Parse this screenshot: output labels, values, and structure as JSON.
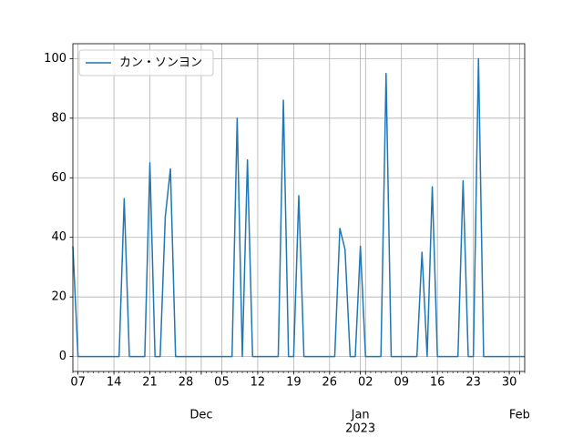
{
  "chart_data": {
    "type": "line",
    "x": [
      "2022-11-06",
      "2022-11-07",
      "2022-11-08",
      "2022-11-09",
      "2022-11-10",
      "2022-11-11",
      "2022-11-12",
      "2022-11-13",
      "2022-11-14",
      "2022-11-15",
      "2022-11-16",
      "2022-11-17",
      "2022-11-18",
      "2022-11-19",
      "2022-11-20",
      "2022-11-21",
      "2022-11-22",
      "2022-11-23",
      "2022-11-24",
      "2022-11-25",
      "2022-11-26",
      "2022-11-27",
      "2022-11-28",
      "2022-11-29",
      "2022-11-30",
      "2022-12-01",
      "2022-12-02",
      "2022-12-03",
      "2022-12-04",
      "2022-12-05",
      "2022-12-06",
      "2022-12-07",
      "2022-12-08",
      "2022-12-09",
      "2022-12-10",
      "2022-12-11",
      "2022-12-12",
      "2022-12-13",
      "2022-12-14",
      "2022-12-15",
      "2022-12-16",
      "2022-12-17",
      "2022-12-18",
      "2022-12-19",
      "2022-12-20",
      "2022-12-21",
      "2022-12-22",
      "2022-12-23",
      "2022-12-24",
      "2022-12-25",
      "2022-12-26",
      "2022-12-27",
      "2022-12-28",
      "2022-12-29",
      "2022-12-30",
      "2022-12-31",
      "2023-01-01",
      "2023-01-02",
      "2023-01-03",
      "2023-01-04",
      "2023-01-05",
      "2023-01-06",
      "2023-01-07",
      "2023-01-08",
      "2023-01-09",
      "2023-01-10",
      "2023-01-11",
      "2023-01-12",
      "2023-01-13",
      "2023-01-14",
      "2023-01-15",
      "2023-01-16",
      "2023-01-17",
      "2023-01-18",
      "2023-01-19",
      "2023-01-20",
      "2023-01-21",
      "2023-01-22",
      "2023-01-23",
      "2023-01-24",
      "2023-01-25",
      "2023-01-26",
      "2023-01-27",
      "2023-01-28",
      "2023-01-29",
      "2023-01-30",
      "2023-01-31",
      "2023-02-01",
      "2023-02-02"
    ],
    "series": [
      {
        "name": "カン・ソンヨン",
        "color": "#1f77b4",
        "values": [
          37,
          0,
          0,
          0,
          0,
          0,
          0,
          0,
          0,
          0,
          53,
          0,
          0,
          0,
          0,
          65,
          0,
          0,
          47,
          63,
          0,
          0,
          0,
          0,
          0,
          0,
          0,
          0,
          0,
          0,
          0,
          0,
          80,
          0,
          66,
          0,
          0,
          0,
          0,
          0,
          0,
          86,
          0,
          0,
          54,
          0,
          0,
          0,
          0,
          0,
          0,
          0,
          43,
          36,
          0,
          0,
          37,
          0,
          0,
          0,
          0,
          95,
          0,
          0,
          0,
          0,
          0,
          0,
          35,
          0,
          57,
          0,
          0,
          0,
          0,
          0,
          59,
          0,
          0,
          100,
          0,
          0,
          0,
          0,
          0,
          0,
          0,
          0,
          0
        ]
      }
    ],
    "xlim": [
      "2022-11-06",
      "2023-02-02"
    ],
    "xticks": [
      {
        "value": "2022-11-07",
        "label": "07"
      },
      {
        "value": "2022-11-14",
        "label": "14"
      },
      {
        "value": "2022-11-21",
        "label": "21"
      },
      {
        "value": "2022-11-28",
        "label": "28"
      },
      {
        "value": "2022-12-05",
        "label": "05"
      },
      {
        "value": "2022-12-12",
        "label": "12"
      },
      {
        "value": "2022-12-19",
        "label": "19"
      },
      {
        "value": "2022-12-26",
        "label": "26"
      },
      {
        "value": "2023-01-02",
        "label": "02"
      },
      {
        "value": "2023-01-09",
        "label": "09"
      },
      {
        "value": "2023-01-16",
        "label": "16"
      },
      {
        "value": "2023-01-23",
        "label": "23"
      },
      {
        "value": "2023-01-30",
        "label": "30"
      }
    ],
    "xticks_secondary": [
      {
        "value": "2022-12-01",
        "label": "Dec"
      },
      {
        "value": "2023-01-01",
        "label": "Jan",
        "sublabel": "2023"
      },
      {
        "value": "2023-02-01",
        "label": "Feb"
      }
    ],
    "ylim": [
      -5,
      105
    ],
    "yticks": [
      0,
      20,
      40,
      60,
      80,
      100
    ],
    "grid": true,
    "legend": "upper left"
  }
}
